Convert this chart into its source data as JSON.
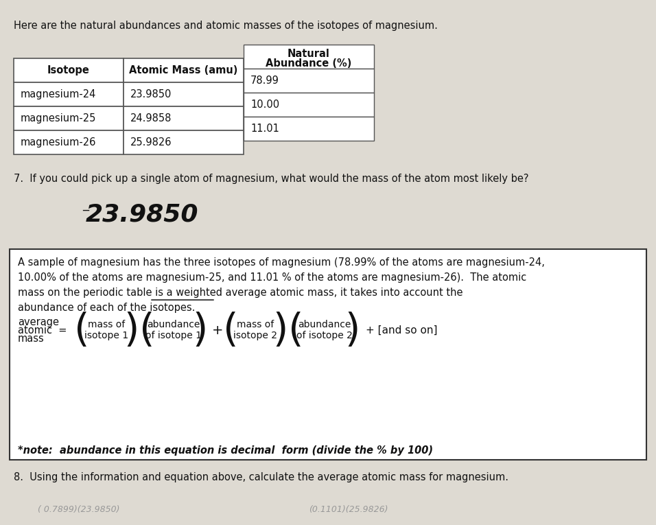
{
  "bg_color": "#dedad2",
  "header_line1": "Here are the natural abundances and atomic masses of the isotopes of magnesium.",
  "table_headers": [
    "Isotope",
    "Atomic Mass (amu)",
    "Natural\nAbundance (%)"
  ],
  "table_rows": [
    [
      "magnesium-24",
      "23.9850",
      "78.99"
    ],
    [
      "magnesium-25",
      "24.9858",
      "10.00"
    ],
    [
      "magnesium-26",
      "25.9826",
      "11.01"
    ]
  ],
  "q7_label": "7.  If you could pick up a single atom of magnesium, what would the mass of the atom most likely be?",
  "q7_answer": "23.9850",
  "box_paragraph": [
    "A sample of magnesium has the three isotopes of magnesium (78.99% of the atoms are magnesium-24,",
    "10.00% of the atoms are magnesium-25, and 11.01 % of the atoms are magnesium-26).  The atomic",
    "mass on the periodic table is a weighted average atomic mass, it takes into account the",
    "abundance of each of the isotopes."
  ],
  "eq_left": [
    "average",
    "atomic  =",
    "mass"
  ],
  "eq_box1": [
    "mass of",
    "isotope 1"
  ],
  "eq_box2": [
    "abundance",
    "of isotope 1"
  ],
  "eq_box3": [
    "mass of",
    "isotope 2"
  ],
  "eq_box4": [
    "abundance",
    "of̲isotope 2"
  ],
  "eq_box4_plain": [
    "abundance",
    "of isotope 2"
  ],
  "eq_suffix": "+ [and so on]",
  "note_text": "*note:  abundance in this equation is decimal  form (divide the % by 100)",
  "q8_text": "8.  Using the information and equation above, calculate the average atomic mass for magnesium.",
  "handwriting_bottom_left": "( 0.7899)(23.9850)",
  "handwriting_bottom_right": "(0.1101)(25.9826)"
}
